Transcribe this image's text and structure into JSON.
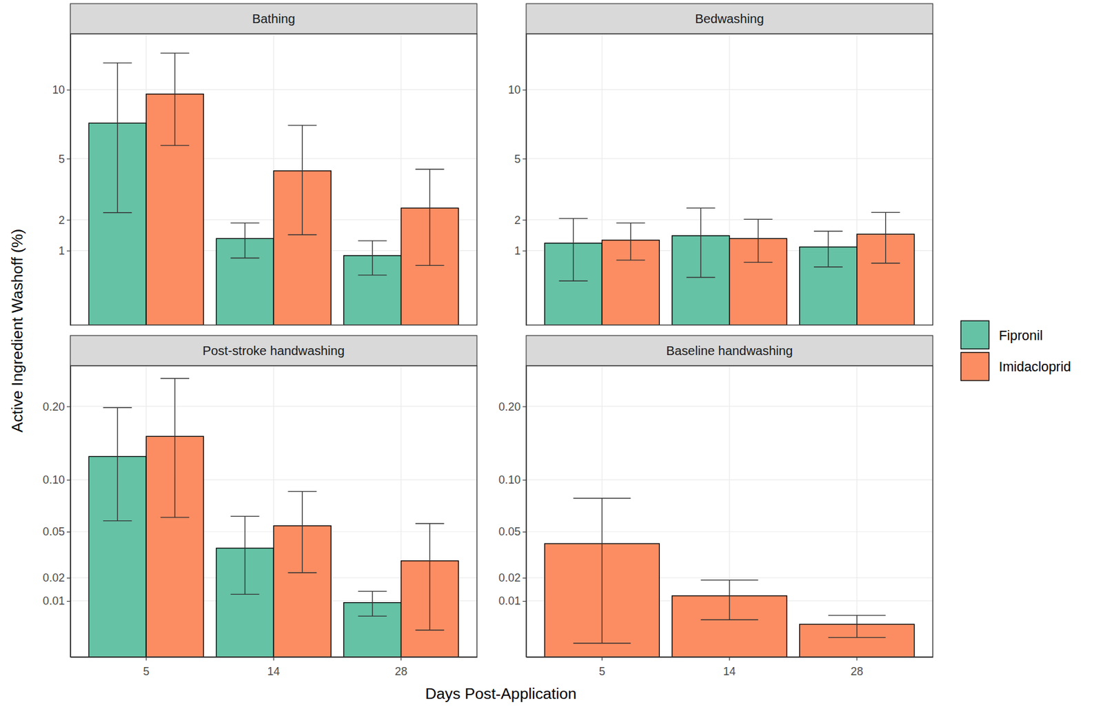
{
  "chart_data": {
    "type": "bar",
    "x_label": "Days Post-Application",
    "y_label": "Active Ingredient Washoff (%)",
    "legend": "right",
    "grid": true,
    "series": [
      {
        "name": "Fipronil",
        "color": "#66c2a5"
      },
      {
        "name": "Imidacloprid",
        "color": "#fc8d62"
      }
    ],
    "panels": [
      {
        "title": "Bathing",
        "categories": [
          "5",
          "14",
          "28"
        ],
        "ylim": [
          0,
          15.3
        ],
        "yticks": [
          1,
          2,
          5,
          10
        ],
        "series": [
          {
            "values": [
              7.36,
              1.35,
              0.87
            ],
            "lower": [
              2.28,
              0.81,
              0.45
            ],
            "upper": [
              12.4,
              1.88,
              1.28
            ]
          },
          {
            "values": [
              9.63,
              4.29,
              2.47
            ],
            "lower": [
              5.82,
              1.47,
              0.64
            ],
            "upper": [
              13.35,
              7.2,
              4.38
            ]
          }
        ]
      },
      {
        "title": "Bedwashing",
        "categories": [
          "5",
          "14",
          "28"
        ],
        "ylim": [
          0,
          15.3
        ],
        "yticks": [
          1,
          2,
          5,
          10
        ],
        "series": [
          {
            "values": [
              1.21,
              1.44,
              1.1
            ],
            "lower": [
              0.35,
              0.41,
              0.61
            ],
            "upper": [
              2.05,
              2.47,
              1.59
            ]
          },
          {
            "values": [
              1.3,
              1.35,
              1.49
            ],
            "lower": [
              0.76,
              0.71,
              0.69
            ],
            "upper": [
              1.88,
              2.02,
              2.29
            ]
          }
        ]
      },
      {
        "title": "Post-stroke handwashing",
        "categories": [
          "5",
          "14",
          "28"
        ],
        "ylim": [
          0,
          0.27
        ],
        "yticks": [
          0.01,
          0.02,
          0.05,
          {
            "value": 0.1,
            "label": "0.10"
          },
          {
            "value": 0.2,
            "label": "0.20"
          }
        ],
        "series": [
          {
            "values": [
              0.128,
              0.0377,
              0.0094
            ],
            "lower": [
              0.059,
              0.0125,
              0.0053
            ],
            "upper": [
              0.198,
              0.063,
              0.0137
            ]
          },
          {
            "values": [
              0.155,
              0.0548,
              0.0294
            ],
            "lower": [
              0.062,
              0.0226,
              0.0023
            ],
            "upper": [
              0.247,
              0.0872,
              0.0567
            ]
          }
        ]
      },
      {
        "title": "Baseline handwashing",
        "categories": [
          "5",
          "14",
          "28"
        ],
        "ylim": [
          0,
          0.27
        ],
        "yticks": [
          0.01,
          0.02,
          0.05,
          {
            "value": 0.1,
            "label": "0.10"
          },
          {
            "value": 0.2,
            "label": "0.20"
          }
        ],
        "series": [
          {
            "values": [
              null,
              null,
              null
            ],
            "lower": [
              null,
              null,
              null
            ],
            "upper": [
              null,
              null,
              null
            ]
          },
          {
            "values": [
              0.0409,
              0.0119,
              0.0034
            ],
            "lower": [
              0.0006,
              0.0044,
              0.0012
            ],
            "upper": [
              0.0802,
              0.0188,
              0.0055
            ]
          }
        ]
      }
    ]
  }
}
